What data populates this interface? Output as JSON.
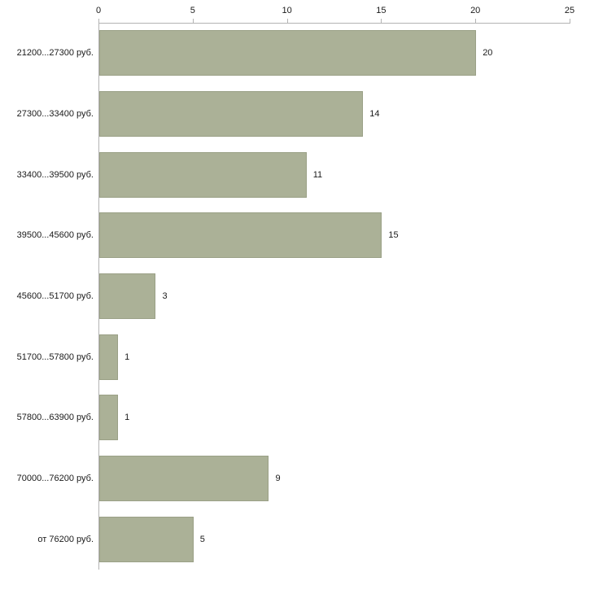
{
  "chart_data": {
    "type": "bar",
    "orientation": "horizontal",
    "title": "",
    "xlabel": "",
    "ylabel": "",
    "categories": [
      "21200...27300 руб.",
      "27300...33400 руб.",
      "33400...39500 руб.",
      "39500...45600 руб.",
      "45600...51700 руб.",
      "51700...57800 руб.",
      "57800...63900 руб.",
      "70000...76200 руб.",
      "от 76200 руб."
    ],
    "values": [
      20,
      14,
      11,
      15,
      3,
      1,
      1,
      9,
      5
    ],
    "xlim": [
      0,
      25
    ],
    "x_ticks": [
      0,
      5,
      10,
      15,
      20,
      25
    ],
    "x_tick_labels": [
      "0",
      "5",
      "10",
      "15",
      "20",
      "25"
    ],
    "grid": false,
    "legend": "none",
    "bar_color": "#abb197",
    "bar_border_color": "#9aa086",
    "axis_color": "#b3b3b3",
    "text_color": "#1a1a1a"
  }
}
